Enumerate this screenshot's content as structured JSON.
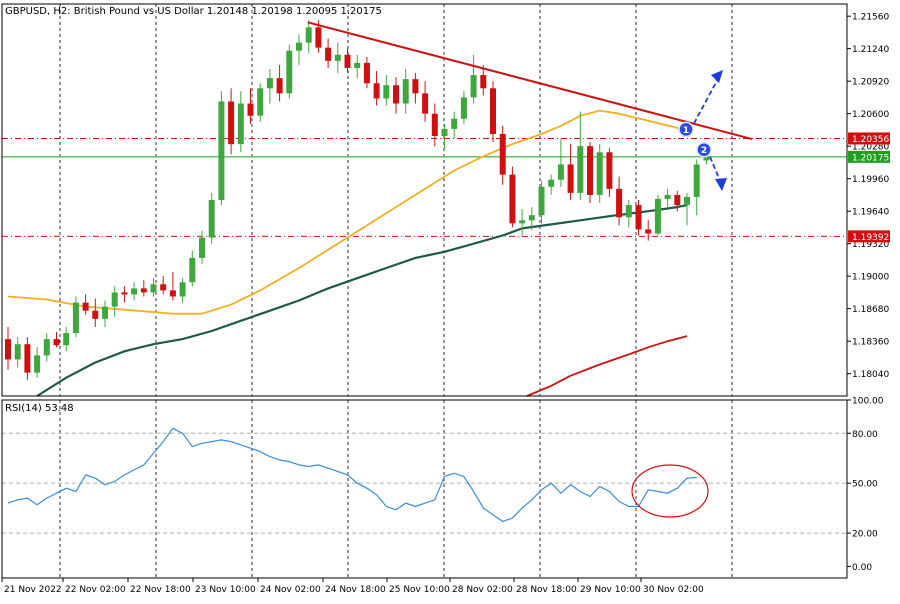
{
  "header": {
    "symbol_line": "GBPUSD, H2:  British Pound vs US Dollar  1.20148 1.20198 1.20095 1.20175",
    "rsi_label": "RSI(14) 53.48"
  },
  "chart_data": [
    {
      "type": "candlestick",
      "symbol": "GBPUSD",
      "timeframe": "H2",
      "description": "British Pound vs US Dollar",
      "last_bar": {
        "open": 1.20148,
        "high": 1.20198,
        "low": 1.20095,
        "close": 1.20175
      },
      "ylim": [
        1.1782,
        1.2168
      ],
      "y_ticks": [
        "1.21560",
        "1.21240",
        "1.20920",
        "1.20600",
        "1.20280",
        "1.19960",
        "1.19640",
        "1.19320",
        "1.19000",
        "1.18680",
        "1.18360",
        "1.18040"
      ],
      "x_tick_labels": [
        "21 Nov 2022",
        "22 Nov 02:00",
        "22 Nov 18:00",
        "23 Nov 10:00",
        "24 Nov 02:00",
        "24 Nov 18:00",
        "25 Nov 10:00",
        "28 Nov 02:00",
        "28 Nov 18:00",
        "29 Nov 10:00",
        "30 Nov 02:00"
      ],
      "price_tags": [
        {
          "value": "1.20356",
          "color": "#d01010"
        },
        {
          "value": "1.20175",
          "color": "#1f9e1f"
        },
        {
          "value": "1.19392",
          "color": "#d01010"
        }
      ],
      "horizontal_levels": [
        {
          "value": 1.20356,
          "color": "#d01010",
          "style": "dash-dot"
        },
        {
          "value": 1.20175,
          "color": "#1f9e1f",
          "style": "solid"
        },
        {
          "value": 1.19392,
          "color": "#d01010",
          "style": "dash-dot"
        }
      ],
      "trendline": {
        "from": {
          "bar": 1,
          "value": 1.215
        },
        "to": {
          "bar": 44,
          "value": 1.2035
        },
        "color": "#d01010"
      },
      "markers": [
        {
          "label": "1",
          "bar": 40.2,
          "value": 1.20445,
          "arrow": "up"
        },
        {
          "label": "2",
          "bar": 41.4,
          "value": 1.20245,
          "arrow": "down"
        }
      ],
      "candles": [
        {
          "o": 1.1838,
          "h": 1.185,
          "l": 1.1808,
          "c": 1.1818
        },
        {
          "o": 1.1818,
          "h": 1.184,
          "l": 1.181,
          "c": 1.1833
        },
        {
          "o": 1.1833,
          "h": 1.184,
          "l": 1.1798,
          "c": 1.1805
        },
        {
          "o": 1.1805,
          "h": 1.183,
          "l": 1.18,
          "c": 1.1822
        },
        {
          "o": 1.1822,
          "h": 1.1844,
          "l": 1.1816,
          "c": 1.1838
        },
        {
          "o": 1.1838,
          "h": 1.1845,
          "l": 1.183,
          "c": 1.1832
        },
        {
          "o": 1.1832,
          "h": 1.185,
          "l": 1.1826,
          "c": 1.1844
        },
        {
          "o": 1.1844,
          "h": 1.188,
          "l": 1.184,
          "c": 1.1874
        },
        {
          "o": 1.1874,
          "h": 1.1882,
          "l": 1.1862,
          "c": 1.1866
        },
        {
          "o": 1.1866,
          "h": 1.1878,
          "l": 1.185,
          "c": 1.1858
        },
        {
          "o": 1.1858,
          "h": 1.1876,
          "l": 1.185,
          "c": 1.187
        },
        {
          "o": 1.187,
          "h": 1.189,
          "l": 1.186,
          "c": 1.1884
        },
        {
          "o": 1.1884,
          "h": 1.189,
          "l": 1.1874,
          "c": 1.1882
        },
        {
          "o": 1.1882,
          "h": 1.1894,
          "l": 1.1876,
          "c": 1.1888
        },
        {
          "o": 1.1888,
          "h": 1.1896,
          "l": 1.188,
          "c": 1.1884
        },
        {
          "o": 1.1884,
          "h": 1.1898,
          "l": 1.188,
          "c": 1.1892
        },
        {
          "o": 1.1892,
          "h": 1.19,
          "l": 1.1882,
          "c": 1.1886
        },
        {
          "o": 1.1886,
          "h": 1.1904,
          "l": 1.1876,
          "c": 1.188
        },
        {
          "o": 1.188,
          "h": 1.1898,
          "l": 1.1874,
          "c": 1.1894
        },
        {
          "o": 1.1894,
          "h": 1.1925,
          "l": 1.189,
          "c": 1.1918
        },
        {
          "o": 1.1918,
          "h": 1.1945,
          "l": 1.1912,
          "c": 1.1938
        },
        {
          "o": 1.1938,
          "h": 1.1982,
          "l": 1.1932,
          "c": 1.1975
        },
        {
          "o": 1.1975,
          "h": 1.2082,
          "l": 1.197,
          "c": 1.2072
        },
        {
          "o": 1.2072,
          "h": 1.2085,
          "l": 1.202,
          "c": 1.203
        },
        {
          "o": 1.203,
          "h": 1.2082,
          "l": 1.2022,
          "c": 1.207
        },
        {
          "o": 1.207,
          "h": 1.2085,
          "l": 1.205,
          "c": 1.2058
        },
        {
          "o": 1.2058,
          "h": 1.209,
          "l": 1.2052,
          "c": 1.2085
        },
        {
          "o": 1.2085,
          "h": 1.2104,
          "l": 1.207,
          "c": 1.2095
        },
        {
          "o": 1.2095,
          "h": 1.2108,
          "l": 1.2072,
          "c": 1.208
        },
        {
          "o": 1.208,
          "h": 1.2128,
          "l": 1.2075,
          "c": 1.2122
        },
        {
          "o": 1.2122,
          "h": 1.2138,
          "l": 1.2108,
          "c": 1.213
        },
        {
          "o": 1.213,
          "h": 1.2152,
          "l": 1.212,
          "c": 1.2145
        },
        {
          "o": 1.2145,
          "h": 1.2152,
          "l": 1.212,
          "c": 1.2125
        },
        {
          "o": 1.2125,
          "h": 1.2134,
          "l": 1.2105,
          "c": 1.2112
        },
        {
          "o": 1.2112,
          "h": 1.213,
          "l": 1.21,
          "c": 1.2118
        },
        {
          "o": 1.2118,
          "h": 1.2124,
          "l": 1.21,
          "c": 1.2105
        },
        {
          "o": 1.2105,
          "h": 1.2118,
          "l": 1.2095,
          "c": 1.211
        },
        {
          "o": 1.211,
          "h": 1.2116,
          "l": 1.2085,
          "c": 1.209
        },
        {
          "o": 1.209,
          "h": 1.2102,
          "l": 1.2068,
          "c": 1.2075
        },
        {
          "o": 1.2075,
          "h": 1.2098,
          "l": 1.2068,
          "c": 1.2088
        },
        {
          "o": 1.2088,
          "h": 1.2096,
          "l": 1.206,
          "c": 1.207
        },
        {
          "o": 1.207,
          "h": 1.2104,
          "l": 1.206,
          "c": 1.2094
        },
        {
          "o": 1.2094,
          "h": 1.21,
          "l": 1.207,
          "c": 1.208
        },
        {
          "o": 1.208,
          "h": 1.2092,
          "l": 1.2052,
          "c": 1.206
        },
        {
          "o": 1.206,
          "h": 1.207,
          "l": 1.2028,
          "c": 1.2038
        },
        {
          "o": 1.2038,
          "h": 1.205,
          "l": 1.2025,
          "c": 1.2045
        },
        {
          "o": 1.2045,
          "h": 1.2062,
          "l": 1.2036,
          "c": 1.2055
        },
        {
          "o": 1.2055,
          "h": 1.2082,
          "l": 1.205,
          "c": 1.2076
        },
        {
          "o": 1.2076,
          "h": 1.2118,
          "l": 1.207,
          "c": 1.2098
        },
        {
          "o": 1.2098,
          "h": 1.2108,
          "l": 1.2078,
          "c": 1.2085
        },
        {
          "o": 1.2085,
          "h": 1.2092,
          "l": 1.2032,
          "c": 1.204
        },
        {
          "o": 1.204,
          "h": 1.2048,
          "l": 1.199,
          "c": 1.2
        },
        {
          "o": 1.2,
          "h": 1.2008,
          "l": 1.1948,
          "c": 1.1952
        },
        {
          "o": 1.1952,
          "h": 1.1966,
          "l": 1.194,
          "c": 1.1955
        },
        {
          "o": 1.1955,
          "h": 1.1968,
          "l": 1.1945,
          "c": 1.196
        },
        {
          "o": 1.196,
          "h": 1.1994,
          "l": 1.1952,
          "c": 1.1988
        },
        {
          "o": 1.1988,
          "h": 1.2,
          "l": 1.198,
          "c": 1.1995
        },
        {
          "o": 1.1995,
          "h": 1.2035,
          "l": 1.1988,
          "c": 1.201
        },
        {
          "o": 1.201,
          "h": 1.203,
          "l": 1.1975,
          "c": 1.1982
        },
        {
          "o": 1.1982,
          "h": 1.2062,
          "l": 1.1975,
          "c": 1.2028
        },
        {
          "o": 1.2028,
          "h": 1.2032,
          "l": 1.1972,
          "c": 1.198
        },
        {
          "o": 1.198,
          "h": 1.203,
          "l": 1.1972,
          "c": 1.2022
        },
        {
          "o": 1.2022,
          "h": 1.2026,
          "l": 1.1978,
          "c": 1.1986
        },
        {
          "o": 1.1986,
          "h": 1.1998,
          "l": 1.195,
          "c": 1.1958
        },
        {
          "o": 1.1958,
          "h": 1.1975,
          "l": 1.1948,
          "c": 1.197
        },
        {
          "o": 1.197,
          "h": 1.1975,
          "l": 1.194,
          "c": 1.1946
        },
        {
          "o": 1.1946,
          "h": 1.1955,
          "l": 1.1935,
          "c": 1.1942
        },
        {
          "o": 1.1942,
          "h": 1.198,
          "l": 1.194,
          "c": 1.1976
        },
        {
          "o": 1.1976,
          "h": 1.1986,
          "l": 1.1968,
          "c": 1.198
        },
        {
          "o": 1.198,
          "h": 1.1984,
          "l": 1.1964,
          "c": 1.197
        },
        {
          "o": 1.197,
          "h": 1.1982,
          "l": 1.195,
          "c": 1.1978
        },
        {
          "o": 1.1978,
          "h": 1.2015,
          "l": 1.196,
          "c": 1.201
        },
        {
          "o": 1.2014,
          "h": 1.202,
          "l": 1.201,
          "c": 1.2017
        }
      ],
      "moving_averages": [
        {
          "color": "#f0b020",
          "points": [
            [
              0,
              1.188
            ],
            [
              4,
              1.1877
            ],
            [
              8,
              1.187
            ],
            [
              12,
              1.1867
            ],
            [
              17,
              1.1863
            ],
            [
              20,
              1.1863
            ],
            [
              23,
              1.1872
            ],
            [
              26,
              1.1886
            ],
            [
              30,
              1.1908
            ],
            [
              34,
              1.1932
            ],
            [
              38,
              1.1956
            ],
            [
              42,
              1.198
            ],
            [
              46,
              1.2004
            ],
            [
              49,
              1.2018
            ],
            [
              52,
              1.203
            ],
            [
              55,
              1.204
            ],
            [
              57,
              1.2048
            ],
            [
              59,
              1.2058
            ],
            [
              61,
              1.2063
            ],
            [
              63,
              1.206
            ],
            [
              66,
              1.2053
            ],
            [
              69,
              1.2046
            ],
            [
              70,
              1.2042
            ]
          ]
        },
        {
          "color": "#1e5a46",
          "points": [
            [
              3,
              1.1782
            ],
            [
              6,
              1.18
            ],
            [
              9,
              1.1815
            ],
            [
              12,
              1.1826
            ],
            [
              15,
              1.1833
            ],
            [
              18,
              1.1838
            ],
            [
              21,
              1.1846
            ],
            [
              24,
              1.1856
            ],
            [
              27,
              1.1866
            ],
            [
              30,
              1.1876
            ],
            [
              33,
              1.1888
            ],
            [
              36,
              1.1898
            ],
            [
              39,
              1.1908
            ],
            [
              42,
              1.1918
            ],
            [
              45,
              1.1924
            ],
            [
              48,
              1.1932
            ],
            [
              51,
              1.194
            ],
            [
              53,
              1.1947
            ],
            [
              56,
              1.1951
            ],
            [
              59,
              1.1955
            ],
            [
              62,
              1.1959
            ],
            [
              66,
              1.1964
            ],
            [
              69,
              1.1968
            ],
            [
              70,
              1.197
            ]
          ]
        },
        {
          "color": "#d01010",
          "points": [
            [
              53.5,
              1.1782
            ],
            [
              56,
              1.1792
            ],
            [
              58,
              1.1802
            ],
            [
              61,
              1.1813
            ],
            [
              64,
              1.1823
            ],
            [
              66,
              1.183
            ],
            [
              68,
              1.1836
            ],
            [
              70,
              1.1841
            ]
          ]
        }
      ]
    },
    {
      "type": "line",
      "title": "RSI(14)",
      "last_value": 53.48,
      "ylim": [
        -7,
        100
      ],
      "y_ticks": [
        "100.00",
        "80.00",
        "50.00",
        "20.00",
        "0.00"
      ],
      "reference_lines": [
        80,
        50,
        20
      ],
      "color": "#3a8fd4",
      "series": {
        "name": "RSI(14)",
        "values": [
          38,
          40,
          41,
          37,
          41,
          44,
          47,
          45,
          55,
          53,
          49,
          51,
          55,
          58,
          61,
          68,
          75,
          83,
          80,
          72,
          74,
          75,
          76,
          75,
          73,
          71,
          69,
          66,
          64,
          63,
          61,
          60,
          61,
          59,
          57,
          55,
          50,
          47,
          43,
          36,
          34,
          38,
          36,
          38,
          40,
          54,
          56,
          54,
          45,
          35,
          31,
          27,
          29,
          35,
          40,
          46,
          50,
          44,
          49,
          45,
          42,
          48,
          45,
          39,
          36,
          36,
          46,
          45,
          44,
          47,
          53,
          53.48
        ]
      }
    }
  ]
}
